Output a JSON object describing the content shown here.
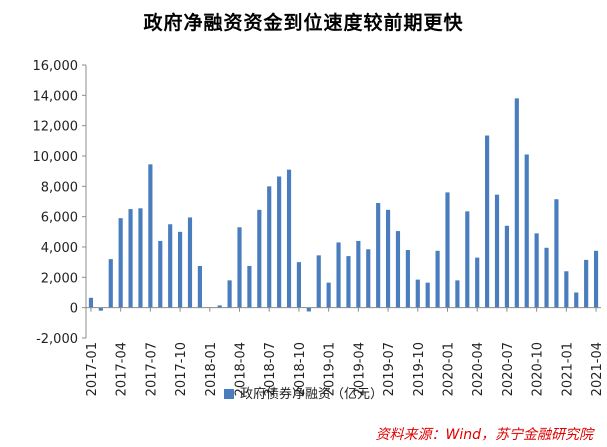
{
  "colors": {
    "bar": "#4a7dbd",
    "axis": "#8c8c8c",
    "grid": "#d9d9d9",
    "source": "#e00000"
  },
  "source_text": "资料来源：Wind，苏宁金融研究院",
  "chart_data": {
    "type": "bar",
    "title": "政府净融资资金到位速度较前期更快",
    "series": [
      {
        "name": "政府债券净融资（亿元）"
      }
    ],
    "ylim": [
      -2000,
      16000
    ],
    "yticks": [
      -2000,
      0,
      2000,
      4000,
      6000,
      8000,
      10000,
      12000,
      14000,
      16000
    ],
    "ytick_labels": [
      "-2,000",
      "0",
      "2,000",
      "4,000",
      "6,000",
      "8,000",
      "10,000",
      "12,000",
      "14,000",
      "16,000"
    ],
    "xtick_labels": [
      "2017-01",
      "2017-04",
      "2017-07",
      "2017-10",
      "2018-01",
      "2018-04",
      "2018-07",
      "2018-10",
      "2019-01",
      "2019-04",
      "2019-07",
      "2019-10",
      "2020-01",
      "2020-04",
      "2020-07",
      "2020-10",
      "2021-01",
      "2021-04"
    ],
    "categories": [
      "2017-01",
      "2017-02",
      "2017-03",
      "2017-04",
      "2017-05",
      "2017-06",
      "2017-07",
      "2017-08",
      "2017-09",
      "2017-10",
      "2017-11",
      "2017-12",
      "2018-01",
      "2018-02",
      "2018-03",
      "2018-04",
      "2018-05",
      "2018-06",
      "2018-07",
      "2018-08",
      "2018-09",
      "2018-10",
      "2018-11",
      "2018-12",
      "2019-01",
      "2019-02",
      "2019-03",
      "2019-04",
      "2019-05",
      "2019-06",
      "2019-07",
      "2019-08",
      "2019-09",
      "2019-10",
      "2019-11",
      "2019-12",
      "2020-01",
      "2020-02",
      "2020-03",
      "2020-04",
      "2020-05",
      "2020-06",
      "2020-07",
      "2020-08",
      "2020-09",
      "2020-10",
      "2020-11",
      "2020-12",
      "2021-01",
      "2021-02",
      "2021-03",
      "2021-04"
    ],
    "values": [
      650,
      -200,
      3200,
      5900,
      6500,
      6550,
      9450,
      4400,
      5500,
      5000,
      5950,
      2750,
      0,
      150,
      1800,
      5300,
      2750,
      6450,
      8000,
      8650,
      9100,
      3000,
      -250,
      3450,
      1650,
      4300,
      3400,
      4400,
      3850,
      6900,
      6450,
      5050,
      3800,
      1850,
      1650,
      3750,
      7600,
      1800,
      6350,
      3300,
      11350,
      7450,
      5400,
      13800,
      10100,
      4900,
      3950,
      7150,
      2400,
      1000,
      3150,
      3750
    ],
    "grid": true,
    "legend_position": "bottom"
  }
}
